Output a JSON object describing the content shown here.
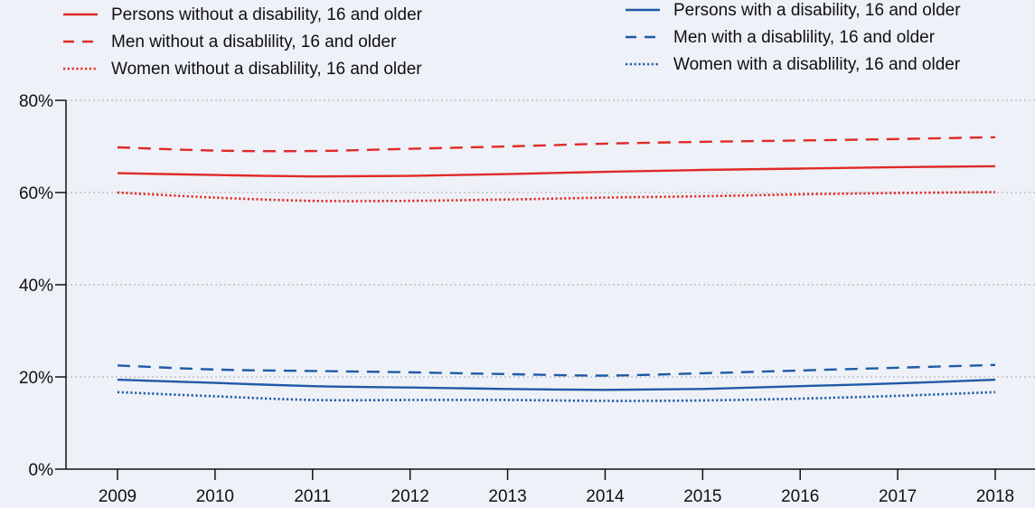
{
  "chart_data": {
    "type": "line",
    "title": "",
    "xlabel": "",
    "ylabel": "",
    "x": [
      "2009",
      "2010",
      "2011",
      "2012",
      "2013",
      "2014",
      "2015",
      "2016",
      "2017",
      "2018"
    ],
    "ylim": [
      0,
      80
    ],
    "yticks": [
      "0%",
      "20%",
      "40%",
      "60%",
      "80%"
    ],
    "grid": "horizontal dotted",
    "legend_position": "top",
    "series": [
      {
        "name": "Persons without a disability, 16 and older",
        "color": "#e02a27",
        "style": "solid",
        "values": [
          64.2,
          63.8,
          63.5,
          63.6,
          64.0,
          64.5,
          64.9,
          65.2,
          65.5,
          65.7
        ]
      },
      {
        "name": "Men without a disablility, 16 and older",
        "color": "#e02a27",
        "style": "dashed",
        "values": [
          69.8,
          69.1,
          69.0,
          69.5,
          70.0,
          70.6,
          71.0,
          71.3,
          71.6,
          72.0
        ]
      },
      {
        "name": "Women without a disablility, 16 and older",
        "color": "#e02a27",
        "style": "dotted",
        "values": [
          60.0,
          58.9,
          58.2,
          58.2,
          58.5,
          58.9,
          59.2,
          59.6,
          59.9,
          60.1
        ]
      },
      {
        "name": "Persons with a disability, 16 and older",
        "color": "#1f5aa8",
        "style": "solid",
        "values": [
          19.4,
          18.7,
          18.0,
          17.7,
          17.4,
          17.2,
          17.4,
          18.0,
          18.6,
          19.4
        ]
      },
      {
        "name": "Men with a disablility, 16 and older",
        "color": "#1f5aa8",
        "style": "dashed",
        "values": [
          22.5,
          21.6,
          21.3,
          21.0,
          20.6,
          20.3,
          20.8,
          21.4,
          22.0,
          22.6
        ]
      },
      {
        "name": "Women with a disablility, 16 and older",
        "color": "#1f5aa8",
        "style": "dotted",
        "values": [
          16.7,
          15.8,
          15.0,
          15.0,
          15.0,
          14.8,
          14.9,
          15.3,
          15.9,
          16.7
        ]
      }
    ]
  }
}
